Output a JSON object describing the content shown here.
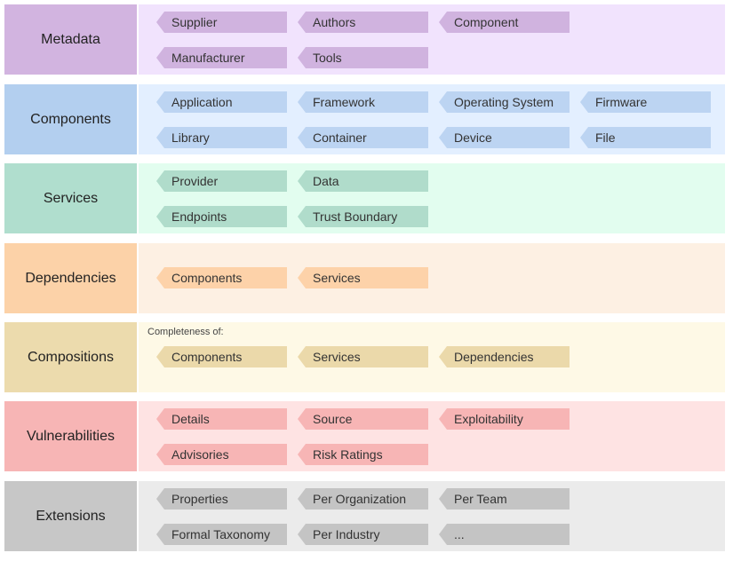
{
  "metadata": {
    "label": "Metadata",
    "tags": [
      "Supplier",
      "Authors",
      "Component",
      "Manufacturer",
      "Tools"
    ]
  },
  "components": {
    "label": "Components",
    "tags": [
      "Application",
      "Framework",
      "Operating System",
      "Firmware",
      "Library",
      "Container",
      "Device",
      "File"
    ]
  },
  "services": {
    "label": "Services",
    "tags": [
      "Provider",
      "Data",
      "Endpoints",
      "Trust Boundary"
    ]
  },
  "dependencies": {
    "label": "Dependencies",
    "tags": [
      "Components",
      "Services"
    ]
  },
  "compositions": {
    "label": "Compositions",
    "note": "Completeness of:",
    "tags": [
      "Components",
      "Services",
      "Dependencies"
    ]
  },
  "vulnerabilities": {
    "label": "Vulnerabilities",
    "tags": [
      "Details",
      "Source",
      "Exploitability",
      "Advisories",
      "Risk Ratings"
    ]
  },
  "extensions": {
    "label": "Extensions",
    "tags": [
      "Properties",
      "Per Organization",
      "Per Team",
      "Formal Taxonomy",
      "Per Industry",
      "..."
    ]
  }
}
